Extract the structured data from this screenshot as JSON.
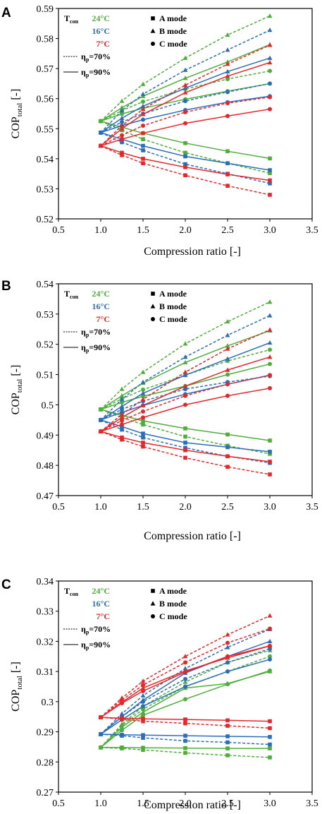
{
  "colors": {
    "24": "#4daf3a",
    "16": "#2a6ebb",
    "7": "#e8262a"
  },
  "legend": {
    "tcon_main": "T",
    "tcon_sub": "con",
    "temps": [
      {
        "key": "24",
        "label": "24°C"
      },
      {
        "key": "16",
        "label": "16°C"
      },
      {
        "key": "7",
        "label": "7°C"
      }
    ],
    "modes": [
      {
        "marker": "square",
        "label": "A mode"
      },
      {
        "marker": "triangle",
        "label": "B mode"
      },
      {
        "marker": "circle",
        "label": "C mode"
      }
    ],
    "eff": [
      {
        "dash": true,
        "label": "=70%"
      },
      {
        "dash": false,
        "label": "=90%"
      }
    ],
    "eta": "η",
    "eta_sub": "p"
  },
  "chart_data": [
    {
      "panel": "A",
      "type": "line",
      "xlabel": "Compression ratio [-]",
      "ylabel_main": "COP",
      "ylabel_sub": "total",
      "ylabel_unit": " [-]",
      "xlim": [
        0.5,
        3.5
      ],
      "ylim": [
        0.52,
        0.59
      ],
      "xticks": [
        "0.5",
        "1.0",
        "1.5",
        "2.0",
        "2.5",
        "3.0",
        "3.5"
      ],
      "yticks": [
        "0.52",
        "0.53",
        "0.54",
        "0.55",
        "0.56",
        "0.57",
        "0.58",
        "0.59"
      ],
      "x": [
        1.0,
        1.25,
        1.5,
        2.0,
        2.5,
        3.0
      ],
      "series": [
        {
          "temp": "24",
          "mode": "A",
          "eta": 90,
          "values": [
            0.5525,
            0.5505,
            0.5485,
            0.5452,
            0.5425,
            0.5401
          ]
        },
        {
          "temp": "24",
          "mode": "A",
          "eta": 70,
          "values": [
            0.5525,
            0.5495,
            0.5465,
            0.542,
            0.5385,
            0.5352
          ]
        },
        {
          "temp": "24",
          "mode": "B",
          "eta": 90,
          "values": [
            0.5525,
            0.557,
            0.5608,
            0.5668,
            0.5722,
            0.578
          ]
        },
        {
          "temp": "24",
          "mode": "B",
          "eta": 70,
          "values": [
            0.5525,
            0.5592,
            0.5648,
            0.5735,
            0.5812,
            0.5875
          ]
        },
        {
          "temp": "24",
          "mode": "C",
          "eta": 90,
          "values": [
            0.5525,
            0.5549,
            0.5568,
            0.5598,
            0.5625,
            0.565
          ]
        },
        {
          "temp": "24",
          "mode": "C",
          "eta": 70,
          "values": [
            0.5525,
            0.556,
            0.559,
            0.5632,
            0.5665,
            0.5692
          ]
        },
        {
          "temp": "16",
          "mode": "A",
          "eta": 90,
          "values": [
            0.5487,
            0.5465,
            0.5443,
            0.5408,
            0.5385,
            0.5362
          ]
        },
        {
          "temp": "16",
          "mode": "A",
          "eta": 70,
          "values": [
            0.5487,
            0.5455,
            0.5428,
            0.5382,
            0.535,
            0.5318
          ]
        },
        {
          "temp": "16",
          "mode": "B",
          "eta": 90,
          "values": [
            0.5487,
            0.5535,
            0.5575,
            0.5635,
            0.569,
            0.5735
          ]
        },
        {
          "temp": "16",
          "mode": "B",
          "eta": 70,
          "values": [
            0.5487,
            0.556,
            0.5615,
            0.5695,
            0.5762,
            0.5828
          ]
        },
        {
          "temp": "16",
          "mode": "C",
          "eta": 90,
          "values": [
            0.5487,
            0.551,
            0.553,
            0.5562,
            0.5588,
            0.5608
          ]
        },
        {
          "temp": "16",
          "mode": "C",
          "eta": 70,
          "values": [
            0.5487,
            0.5522,
            0.555,
            0.5592,
            0.5622,
            0.565
          ]
        },
        {
          "temp": "7",
          "mode": "A",
          "eta": 90,
          "values": [
            0.5443,
            0.542,
            0.54,
            0.5372,
            0.5348,
            0.5328
          ]
        },
        {
          "temp": "7",
          "mode": "A",
          "eta": 70,
          "values": [
            0.5443,
            0.5412,
            0.5385,
            0.5345,
            0.531,
            0.528
          ]
        },
        {
          "temp": "7",
          "mode": "B",
          "eta": 90,
          "values": [
            0.5443,
            0.55,
            0.5548,
            0.562,
            0.5675,
            0.572
          ]
        },
        {
          "temp": "7",
          "mode": "B",
          "eta": 70,
          "values": [
            0.5443,
            0.551,
            0.5565,
            0.5645,
            0.5715,
            0.5778
          ]
        },
        {
          "temp": "7",
          "mode": "C",
          "eta": 90,
          "values": [
            0.5443,
            0.5465,
            0.5485,
            0.5518,
            0.5542,
            0.5565
          ]
        },
        {
          "temp": "7",
          "mode": "C",
          "eta": 70,
          "values": [
            0.5443,
            0.5478,
            0.551,
            0.5555,
            0.5585,
            0.5605
          ]
        }
      ]
    },
    {
      "panel": "B",
      "type": "line",
      "xlabel": "Compression ratio [-]",
      "ylabel_main": "COP",
      "ylabel_sub": "total",
      "ylabel_unit": " [-]",
      "xlim": [
        0.5,
        3.5
      ],
      "ylim": [
        0.47,
        0.54
      ],
      "xticks": [
        "0.5",
        "1.0",
        "1.5",
        "2.0",
        "2.5",
        "3.0",
        "3.5"
      ],
      "yticks": [
        "0.47",
        "0.48",
        "0.49",
        "0.5",
        "0.51",
        "0.52",
        "0.53",
        "0.54"
      ],
      "x": [
        1.0,
        1.25,
        1.5,
        2.0,
        2.5,
        3.0
      ],
      "series": [
        {
          "temp": "24",
          "mode": "A",
          "eta": 90,
          "values": [
            0.4985,
            0.4965,
            0.4947,
            0.4922,
            0.4902,
            0.4882
          ]
        },
        {
          "temp": "24",
          "mode": "A",
          "eta": 70,
          "values": [
            0.4985,
            0.4958,
            0.4935,
            0.4895,
            0.4865,
            0.4838
          ]
        },
        {
          "temp": "24",
          "mode": "B",
          "eta": 90,
          "values": [
            0.4985,
            0.503,
            0.5072,
            0.514,
            0.5195,
            0.5245
          ]
        },
        {
          "temp": "24",
          "mode": "B",
          "eta": 70,
          "values": [
            0.4985,
            0.5052,
            0.5108,
            0.5202,
            0.5275,
            0.534
          ]
        },
        {
          "temp": "24",
          "mode": "C",
          "eta": 90,
          "values": [
            0.4985,
            0.5008,
            0.5028,
            0.5062,
            0.51,
            0.5135
          ]
        },
        {
          "temp": "24",
          "mode": "C",
          "eta": 70,
          "values": [
            0.4985,
            0.502,
            0.505,
            0.5098,
            0.5145,
            0.5182
          ]
        },
        {
          "temp": "16",
          "mode": "A",
          "eta": 90,
          "values": [
            0.495,
            0.4928,
            0.4905,
            0.4875,
            0.486,
            0.4845
          ]
        },
        {
          "temp": "16",
          "mode": "A",
          "eta": 70,
          "values": [
            0.495,
            0.4918,
            0.4892,
            0.4858,
            0.483,
            0.4808
          ]
        },
        {
          "temp": "16",
          "mode": "B",
          "eta": 90,
          "values": [
            0.495,
            0.4995,
            0.5038,
            0.5098,
            0.5152,
            0.5205
          ]
        },
        {
          "temp": "16",
          "mode": "B",
          "eta": 70,
          "values": [
            0.495,
            0.5018,
            0.5075,
            0.5158,
            0.523,
            0.5295
          ]
        },
        {
          "temp": "16",
          "mode": "C",
          "eta": 90,
          "values": [
            0.495,
            0.4975,
            0.4998,
            0.5035,
            0.5068,
            0.5098
          ]
        },
        {
          "temp": "16",
          "mode": "C",
          "eta": 70,
          "values": [
            0.495,
            0.4985,
            0.5012,
            0.5052,
            0.5075,
            0.5095
          ]
        },
        {
          "temp": "7",
          "mode": "A",
          "eta": 90,
          "values": [
            0.4912,
            0.4892,
            0.4875,
            0.485,
            0.483,
            0.4812
          ]
        },
        {
          "temp": "7",
          "mode": "A",
          "eta": 70,
          "values": [
            0.4912,
            0.4885,
            0.4862,
            0.4825,
            0.4795,
            0.477
          ]
        },
        {
          "temp": "7",
          "mode": "B",
          "eta": 90,
          "values": [
            0.4912,
            0.4958,
            0.4998,
            0.5062,
            0.5115,
            0.5158
          ]
        },
        {
          "temp": "7",
          "mode": "B",
          "eta": 70,
          "values": [
            0.4912,
            0.4968,
            0.5018,
            0.5108,
            0.5185,
            0.5248
          ]
        },
        {
          "temp": "7",
          "mode": "C",
          "eta": 90,
          "values": [
            0.4912,
            0.4935,
            0.4958,
            0.5,
            0.503,
            0.5055
          ]
        },
        {
          "temp": "7",
          "mode": "C",
          "eta": 70,
          "values": [
            0.4912,
            0.4948,
            0.4978,
            0.503,
            0.5068,
            0.5098
          ]
        }
      ]
    },
    {
      "panel": "C",
      "type": "line",
      "xlabel": "Compression ratio [-]",
      "ylabel_main": "COP",
      "ylabel_sub": "total",
      "ylabel_unit": " [-]",
      "xlim": [
        0.5,
        3.5
      ],
      "ylim": [
        0.27,
        0.34
      ],
      "xticks": [
        "0.5",
        "1.0",
        "1.5",
        "2.0",
        "2.5",
        "3.0",
        "3.5"
      ],
      "yticks": [
        "0.27",
        "0.28",
        "0.29",
        "0.3",
        "0.31",
        "0.32",
        "0.33",
        "0.34"
      ],
      "x": [
        1.0,
        1.25,
        1.5,
        2.0,
        2.5,
        3.0
      ],
      "series": [
        {
          "temp": "24",
          "mode": "A",
          "eta": 90,
          "values": [
            0.2848,
            0.2848,
            0.2847,
            0.2846,
            0.2845,
            0.2845
          ]
        },
        {
          "temp": "24",
          "mode": "A",
          "eta": 70,
          "values": [
            0.2848,
            0.2845,
            0.284,
            0.283,
            0.2822,
            0.2815
          ]
        },
        {
          "temp": "24",
          "mode": "B",
          "eta": 90,
          "values": [
            0.2848,
            0.2915,
            0.2965,
            0.3045,
            0.306,
            0.31
          ]
        },
        {
          "temp": "24",
          "mode": "B",
          "eta": 70,
          "values": [
            0.2848,
            0.2925,
            0.2985,
            0.3065,
            0.313,
            0.317
          ]
        },
        {
          "temp": "24",
          "mode": "C",
          "eta": 90,
          "values": [
            0.2848,
            0.2905,
            0.2955,
            0.3008,
            0.3058,
            0.3103
          ]
        },
        {
          "temp": "24",
          "mode": "C",
          "eta": 70,
          "values": [
            0.2848,
            0.292,
            0.2975,
            0.305,
            0.31,
            0.315
          ]
        },
        {
          "temp": "16",
          "mode": "A",
          "eta": 90,
          "values": [
            0.2892,
            0.289,
            0.2889,
            0.2887,
            0.2885,
            0.2883
          ]
        },
        {
          "temp": "16",
          "mode": "A",
          "eta": 70,
          "values": [
            0.2892,
            0.2887,
            0.288,
            0.287,
            0.2865,
            0.2858
          ]
        },
        {
          "temp": "16",
          "mode": "B",
          "eta": 90,
          "values": [
            0.2892,
            0.295,
            0.3005,
            0.3095,
            0.315,
            0.32
          ]
        },
        {
          "temp": "16",
          "mode": "B",
          "eta": 70,
          "values": [
            0.2892,
            0.296,
            0.302,
            0.311,
            0.318,
            0.324
          ]
        },
        {
          "temp": "16",
          "mode": "C",
          "eta": 90,
          "values": [
            0.2892,
            0.294,
            0.2985,
            0.305,
            0.31,
            0.314
          ]
        },
        {
          "temp": "16",
          "mode": "C",
          "eta": 70,
          "values": [
            0.2892,
            0.295,
            0.3,
            0.3075,
            0.313,
            0.3175
          ]
        },
        {
          "temp": "7",
          "mode": "A",
          "eta": 90,
          "values": [
            0.2948,
            0.2945,
            0.2943,
            0.2941,
            0.2938,
            0.2935
          ]
        },
        {
          "temp": "7",
          "mode": "A",
          "eta": 70,
          "values": [
            0.2948,
            0.2942,
            0.2935,
            0.2928,
            0.292,
            0.2912
          ]
        },
        {
          "temp": "7",
          "mode": "B",
          "eta": 90,
          "values": [
            0.2948,
            0.2998,
            0.3045,
            0.3102,
            0.3145,
            0.3185
          ]
        },
        {
          "temp": "7",
          "mode": "B",
          "eta": 70,
          "values": [
            0.2948,
            0.3012,
            0.3068,
            0.315,
            0.3222,
            0.3285
          ]
        },
        {
          "temp": "7",
          "mode": "C",
          "eta": 90,
          "values": [
            0.2948,
            0.2995,
            0.3035,
            0.3098,
            0.315,
            0.3185
          ]
        },
        {
          "temp": "7",
          "mode": "C",
          "eta": 70,
          "values": [
            0.2948,
            0.3005,
            0.3055,
            0.313,
            0.3195,
            0.3242
          ]
        }
      ]
    }
  ]
}
